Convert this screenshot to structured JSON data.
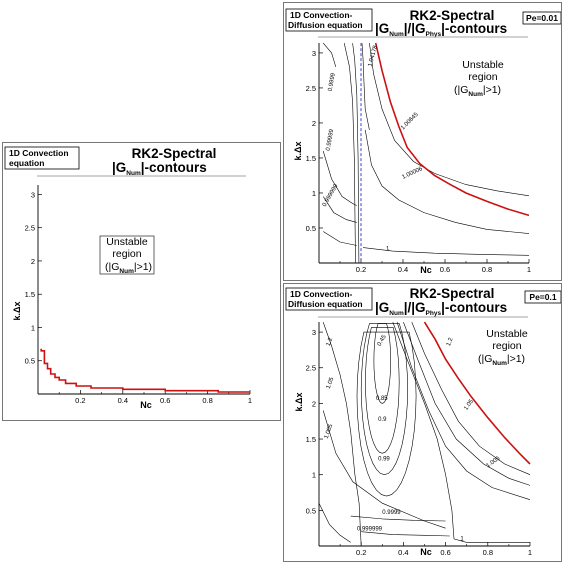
{
  "panels": [
    {
      "tag": [
        "1D Convection",
        "equation"
      ],
      "title_line1": "RK2-Spectral",
      "title_line2": "|G|-contours",
      "pe_label": "",
      "region_label": [
        "Unstable",
        "region",
        "(|G|>1)"
      ],
      "xlabel": "Nc",
      "ylabel": "k.Δx"
    },
    {
      "tag": [
        "1D Convection-",
        "Diffusion equation"
      ],
      "title_line1": "RK2-Spectral",
      "title_line2": "|G|/|G|-contours",
      "pe_label": "Pe=0.01",
      "region_label": [
        "Unstable",
        "region",
        "(|G|>1)"
      ],
      "xlabel": "Nc",
      "ylabel": "k.Δx"
    },
    {
      "tag": [
        "1D Convection-",
        "Diffusion equation"
      ],
      "title_line1": "RK2-Spectral",
      "title_line2": "|G|/|G|-contours",
      "pe_label": "Pe=0.1",
      "region_label": [
        "Unstable",
        "region",
        "(|G|>1)"
      ],
      "xlabel": "Nc",
      "ylabel": "k.Δx"
    }
  ],
  "chart_data": [
    {
      "type": "line",
      "title": "RK2-Spectral |G_Num|-contours",
      "subtitle": "1D Convection equation",
      "xlabel": "Nc",
      "ylabel": "k.Δx",
      "xlim": [
        0,
        1
      ],
      "ylim": [
        0,
        3.14159
      ],
      "xticks": [
        0.2,
        0.4,
        0.6,
        0.8,
        1
      ],
      "yticks": [
        0.5,
        1,
        1.5,
        2,
        2.5,
        3
      ],
      "color": "#cc1111",
      "series": [
        {
          "x": [
            0.015,
            0.015,
            0.03,
            0.03,
            0.045,
            0.045,
            0.06,
            0.06,
            0.08,
            0.08,
            0.1,
            0.1,
            0.13,
            0.13,
            0.18,
            0.18,
            0.25,
            0.25,
            0.4,
            0.4,
            0.6,
            0.6,
            0.85,
            0.85,
            1.0
          ],
          "y": [
            0.68,
            0.65,
            0.65,
            0.46,
            0.46,
            0.38,
            0.38,
            0.3,
            0.3,
            0.25,
            0.25,
            0.21,
            0.21,
            0.16,
            0.16,
            0.12,
            0.12,
            0.09,
            0.09,
            0.07,
            0.07,
            0.05,
            0.05,
            0.03,
            0.03
          ]
        }
      ]
    },
    {
      "type": "line",
      "title": "RK2-Spectral |G_Num|/|G_Phys|-contours",
      "subtitle": "1D Convection-Diffusion equation, Pe=0.01",
      "xlabel": "Nc",
      "ylabel": "k.Δx",
      "xlim": [
        0,
        1
      ],
      "ylim": [
        0,
        3.14159
      ],
      "xticks": [
        0.2,
        0.4,
        0.6,
        0.8,
        1
      ],
      "yticks": [
        0.5,
        1,
        1.5,
        2,
        2.5,
        3
      ],
      "contour_levels": [
        "1.04178",
        "1.00645",
        "1.00006",
        "0.9999",
        "0.99999",
        "0.999999",
        "1"
      ],
      "boundary": {
        "color": "#cc1111",
        "x": [
          0.27,
          0.3,
          0.34,
          0.38,
          0.42,
          0.48,
          0.55,
          0.62,
          0.7,
          0.8,
          0.9,
          1.0
        ],
        "y": [
          3.14,
          2.75,
          2.3,
          1.95,
          1.65,
          1.42,
          1.25,
          1.13,
          1.0,
          0.88,
          0.77,
          0.68
        ]
      }
    },
    {
      "type": "line",
      "title": "RK2-Spectral |G_Num|/|G_Phys|-contours",
      "subtitle": "1D Convection-Diffusion equation, Pe=0.1",
      "xlabel": "Nc",
      "ylabel": "k.Δx",
      "xlim": [
        0,
        1
      ],
      "ylim": [
        0,
        3.14159
      ],
      "xticks": [
        0.2,
        0.4,
        0.6,
        0.8,
        1
      ],
      "yticks": [
        0.5,
        1,
        1.5,
        2,
        2.5,
        3
      ],
      "contour_levels": [
        "1.2",
        "1.05",
        "1.005",
        "0.45",
        "0.85",
        "0.9",
        "0.99",
        "0.9999",
        "0.999999",
        "1.2",
        "1.05",
        "1.005",
        "1"
      ],
      "boundary": {
        "color": "#cc1111",
        "x": [
          0.5,
          0.55,
          0.6,
          0.66,
          0.72,
          0.8,
          0.88,
          0.95,
          1.0
        ],
        "y": [
          3.14,
          2.9,
          2.62,
          2.35,
          2.1,
          1.8,
          1.52,
          1.3,
          1.15
        ]
      }
    }
  ]
}
